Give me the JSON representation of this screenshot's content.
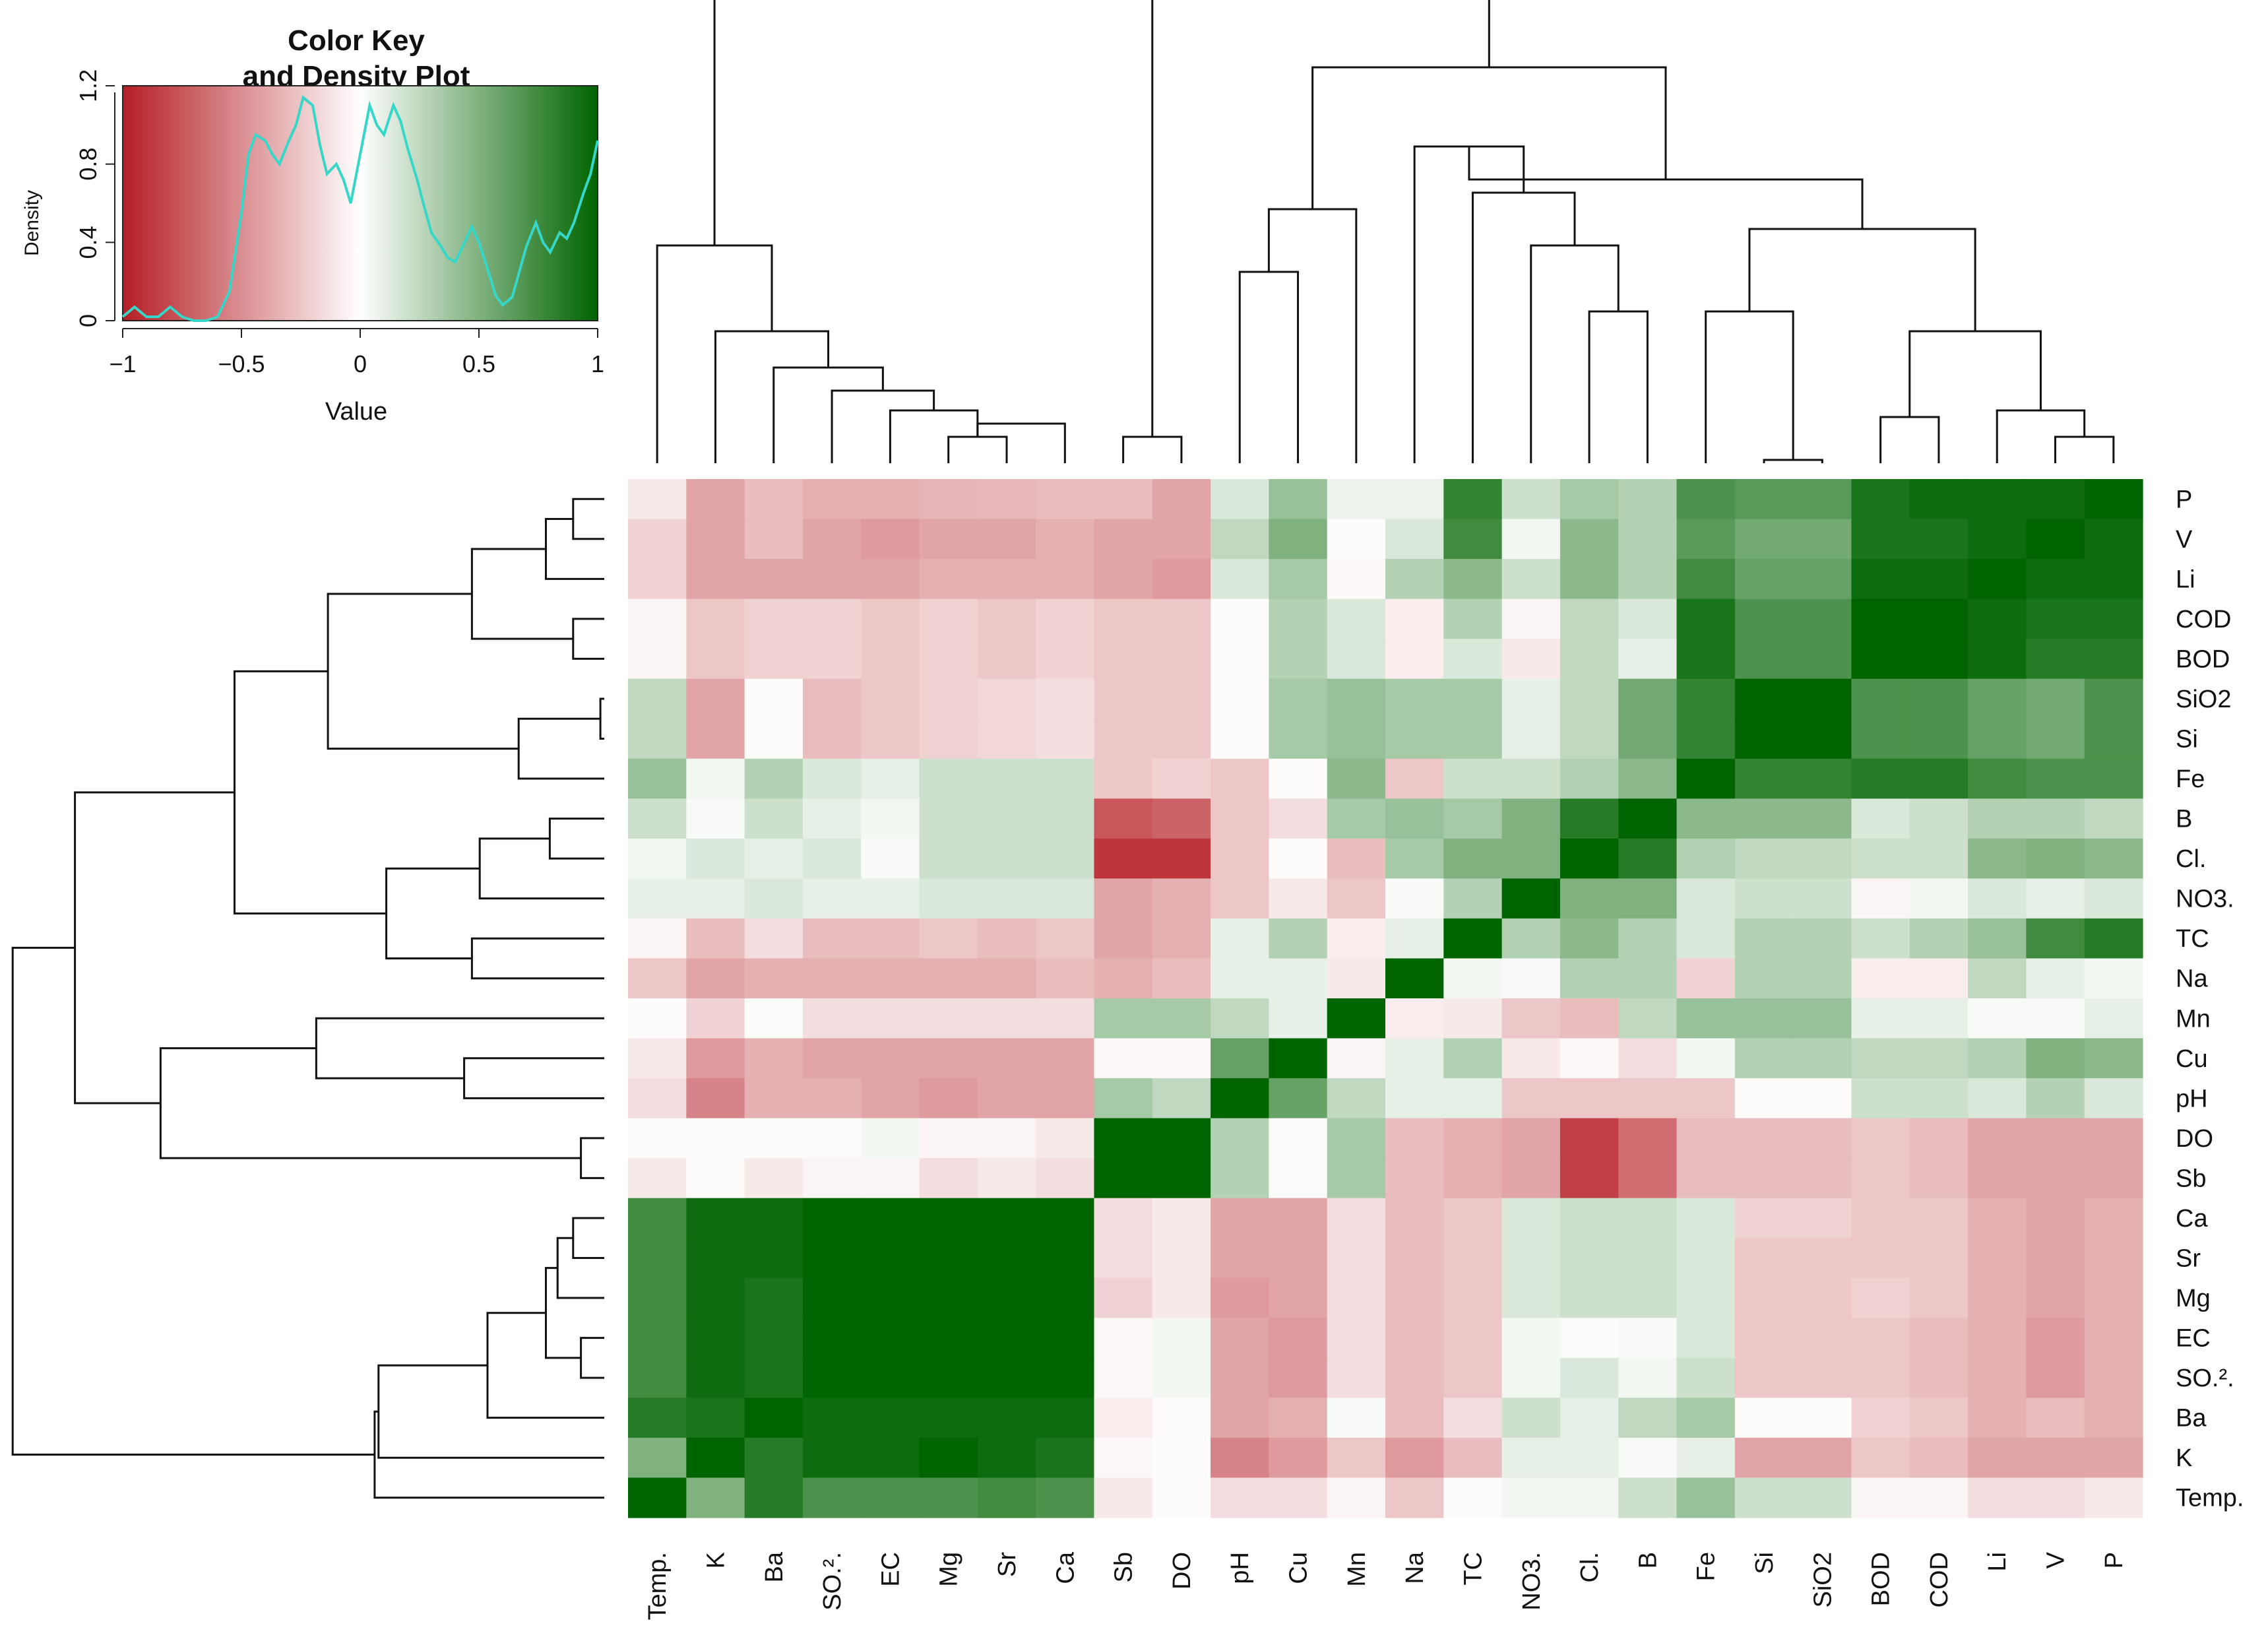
{
  "chart_data": {
    "type": "heatmap",
    "title": "",
    "row_labels": [
      "P",
      "V",
      "Li",
      "COD",
      "BOD",
      "SiO2",
      "Si",
      "Fe",
      "B",
      "Cl.",
      "NO3.",
      "TC",
      "Na",
      "Mn",
      "Cu",
      "pH",
      "DO",
      "Sb",
      "Ca",
      "Sr",
      "Mg",
      "EC",
      "SO.².",
      "Ba",
      "K",
      "Temp."
    ],
    "col_labels": [
      "Temp.",
      "K",
      "Ba",
      "SO.².",
      "EC",
      "Mg",
      "Sr",
      "Ca",
      "Sb",
      "DO",
      "pH",
      "Cu",
      "Mn",
      "Na",
      "TC",
      "NO3.",
      "Cl.",
      "B",
      "Fe",
      "Si",
      "SiO2",
      "BOD",
      "COD",
      "Li",
      "V",
      "P"
    ],
    "values": [
      [
        -0.1,
        -0.4,
        -0.3,
        -0.35,
        -0.35,
        -0.33,
        -0.32,
        -0.3,
        -0.3,
        -0.4,
        0.15,
        0.4,
        0.08,
        0.08,
        0.8,
        0.2,
        0.35,
        0.3,
        0.7,
        0.65,
        0.65,
        0.9,
        0.95,
        0.95,
        0.95,
        1.0
      ],
      [
        -0.2,
        -0.4,
        -0.3,
        -0.4,
        -0.45,
        -0.4,
        -0.4,
        -0.35,
        -0.4,
        -0.4,
        0.25,
        0.5,
        -0.02,
        0.15,
        0.75,
        0.05,
        0.45,
        0.3,
        0.65,
        0.55,
        0.55,
        0.9,
        0.9,
        0.95,
        1.0,
        0.95
      ],
      [
        -0.2,
        -0.4,
        -0.4,
        -0.4,
        -0.4,
        -0.35,
        -0.35,
        -0.35,
        -0.4,
        -0.45,
        0.15,
        0.35,
        -0.03,
        0.3,
        0.45,
        0.2,
        0.45,
        0.3,
        0.75,
        0.6,
        0.6,
        0.95,
        0.95,
        1.0,
        0.95,
        0.95
      ],
      [
        -0.05,
        -0.25,
        -0.2,
        -0.2,
        -0.25,
        -0.2,
        -0.25,
        -0.2,
        -0.25,
        -0.25,
        -0.02,
        0.3,
        0.15,
        -0.08,
        0.3,
        -0.05,
        0.25,
        0.15,
        0.9,
        0.7,
        0.7,
        1.0,
        1.0,
        0.95,
        0.9,
        0.9
      ],
      [
        -0.05,
        -0.25,
        -0.2,
        -0.2,
        -0.25,
        -0.2,
        -0.25,
        -0.2,
        -0.25,
        -0.25,
        -0.02,
        0.3,
        0.15,
        -0.08,
        0.15,
        -0.1,
        0.25,
        0.1,
        0.9,
        0.7,
        0.7,
        1.0,
        1.0,
        0.95,
        0.85,
        0.85
      ],
      [
        0.25,
        -0.4,
        -0.02,
        -0.3,
        -0.25,
        -0.2,
        -0.18,
        -0.15,
        -0.25,
        -0.25,
        -0.02,
        0.35,
        0.4,
        0.35,
        0.35,
        0.1,
        0.25,
        0.55,
        0.8,
        1.0,
        1.0,
        0.7,
        0.7,
        0.6,
        0.55,
        0.7
      ],
      [
        0.25,
        -0.4,
        -0.02,
        -0.3,
        -0.25,
        -0.2,
        -0.18,
        -0.15,
        -0.25,
        -0.25,
        -0.02,
        0.35,
        0.4,
        0.35,
        0.35,
        0.1,
        0.25,
        0.55,
        0.8,
        1.0,
        1.0,
        0.7,
        0.7,
        0.6,
        0.55,
        0.7
      ],
      [
        0.4,
        0.05,
        0.3,
        0.15,
        0.1,
        0.2,
        0.2,
        0.2,
        -0.25,
        -0.2,
        -0.25,
        -0.02,
        0.45,
        -0.25,
        0.2,
        0.2,
        0.3,
        0.45,
        1.0,
        0.8,
        0.8,
        0.85,
        0.85,
        0.75,
        0.7,
        0.7
      ],
      [
        0.2,
        0.03,
        0.2,
        0.1,
        0.05,
        0.2,
        0.2,
        0.2,
        -0.75,
        -0.7,
        -0.25,
        -0.15,
        0.35,
        0.4,
        0.35,
        0.5,
        0.85,
        1.0,
        0.45,
        0.45,
        0.45,
        0.15,
        0.2,
        0.3,
        0.3,
        0.25
      ],
      [
        0.05,
        0.15,
        0.1,
        0.15,
        0.03,
        0.2,
        0.2,
        0.2,
        -0.9,
        -0.9,
        -0.25,
        -0.02,
        -0.3,
        0.35,
        0.5,
        0.5,
        1.0,
        0.85,
        0.3,
        0.25,
        0.25,
        0.2,
        0.2,
        0.45,
        0.5,
        0.45
      ],
      [
        0.1,
        0.1,
        0.15,
        0.1,
        0.1,
        0.15,
        0.15,
        0.15,
        -0.4,
        -0.35,
        -0.25,
        -0.1,
        -0.25,
        0.03,
        0.3,
        1.0,
        0.5,
        0.5,
        0.15,
        0.2,
        0.2,
        -0.05,
        0.05,
        0.15,
        0.1,
        0.15
      ],
      [
        -0.05,
        -0.3,
        -0.15,
        -0.3,
        -0.3,
        -0.25,
        -0.3,
        -0.25,
        -0.4,
        -0.35,
        0.1,
        0.3,
        -0.08,
        0.1,
        1.0,
        0.3,
        0.45,
        0.3,
        0.15,
        0.3,
        0.3,
        0.2,
        0.3,
        0.4,
        0.75,
        0.85
      ],
      [
        -0.25,
        -0.4,
        -0.35,
        -0.35,
        -0.35,
        -0.35,
        -0.35,
        -0.3,
        -0.35,
        -0.3,
        0.1,
        0.1,
        -0.1,
        1.0,
        0.05,
        0.03,
        0.3,
        0.3,
        -0.2,
        0.3,
        0.3,
        -0.08,
        -0.08,
        0.25,
        0.1,
        0.05
      ],
      [
        -0.02,
        -0.2,
        0.02,
        -0.15,
        -0.15,
        -0.15,
        -0.15,
        -0.15,
        0.35,
        0.35,
        0.25,
        0.1,
        1.0,
        -0.08,
        -0.1,
        -0.25,
        -0.3,
        0.25,
        0.4,
        0.4,
        0.4,
        0.1,
        0.1,
        0.03,
        0.03,
        0.1
      ],
      [
        -0.1,
        -0.45,
        -0.35,
        -0.4,
        -0.4,
        -0.4,
        -0.4,
        -0.4,
        -0.03,
        -0.03,
        0.6,
        1.0,
        -0.05,
        0.1,
        0.3,
        -0.1,
        -0.03,
        -0.15,
        0.05,
        0.3,
        0.3,
        0.25,
        0.25,
        0.3,
        0.5,
        0.45
      ],
      [
        -0.15,
        -0.55,
        -0.35,
        -0.35,
        -0.4,
        -0.45,
        -0.4,
        -0.4,
        0.35,
        0.25,
        1.0,
        0.6,
        0.25,
        0.1,
        0.1,
        -0.25,
        -0.25,
        -0.25,
        -0.25,
        -0.02,
        -0.02,
        0.2,
        0.2,
        0.15,
        0.3,
        0.15
      ],
      [
        -0.02,
        -0.02,
        -0.02,
        -0.02,
        0.05,
        -0.05,
        -0.05,
        -0.1,
        1.0,
        1.0,
        0.3,
        0.02,
        0.35,
        -0.3,
        -0.35,
        -0.4,
        -0.85,
        -0.65,
        -0.3,
        -0.3,
        -0.3,
        -0.25,
        -0.3,
        -0.4,
        -0.4,
        -0.4
      ],
      [
        -0.1,
        -0.02,
        -0.1,
        -0.05,
        -0.05,
        -0.15,
        -0.1,
        -0.15,
        1.0,
        1.0,
        0.3,
        0.02,
        0.35,
        -0.3,
        -0.35,
        -0.4,
        -0.85,
        -0.65,
        -0.3,
        -0.3,
        -0.3,
        -0.25,
        -0.3,
        -0.4,
        -0.4,
        -0.4
      ],
      [
        0.75,
        0.95,
        0.95,
        1.0,
        1.0,
        1.0,
        1.0,
        1.0,
        -0.15,
        -0.1,
        -0.4,
        -0.4,
        -0.15,
        -0.3,
        -0.25,
        0.15,
        0.2,
        0.2,
        0.15,
        -0.2,
        -0.2,
        -0.25,
        -0.25,
        -0.35,
        -0.4,
        -0.35
      ],
      [
        0.75,
        0.95,
        0.95,
        1.0,
        1.0,
        1.0,
        1.0,
        1.0,
        -0.15,
        -0.1,
        -0.4,
        -0.4,
        -0.15,
        -0.3,
        -0.25,
        0.15,
        0.2,
        0.2,
        0.15,
        -0.25,
        -0.25,
        -0.25,
        -0.25,
        -0.35,
        -0.4,
        -0.35
      ],
      [
        0.75,
        0.95,
        0.9,
        1.0,
        1.0,
        1.0,
        1.0,
        1.0,
        -0.2,
        -0.1,
        -0.45,
        -0.4,
        -0.15,
        -0.3,
        -0.25,
        0.15,
        0.2,
        0.2,
        0.15,
        -0.25,
        -0.25,
        -0.2,
        -0.25,
        -0.35,
        -0.4,
        -0.35
      ],
      [
        0.75,
        0.95,
        0.9,
        1.0,
        1.0,
        1.0,
        1.0,
        1.0,
        -0.03,
        0.05,
        -0.4,
        -0.45,
        -0.15,
        -0.3,
        -0.25,
        0.05,
        0.02,
        0.03,
        0.15,
        -0.25,
        -0.25,
        -0.25,
        -0.3,
        -0.35,
        -0.45,
        -0.35
      ],
      [
        0.75,
        0.95,
        0.9,
        1.0,
        1.0,
        1.0,
        1.0,
        1.0,
        -0.03,
        0.05,
        -0.4,
        -0.45,
        -0.15,
        -0.3,
        -0.25,
        0.05,
        0.15,
        0.05,
        0.2,
        -0.25,
        -0.25,
        -0.25,
        -0.3,
        -0.35,
        -0.45,
        -0.35
      ],
      [
        0.85,
        0.9,
        1.0,
        0.95,
        0.95,
        0.95,
        0.95,
        0.95,
        -0.08,
        -0.02,
        -0.4,
        -0.35,
        0.03,
        -0.3,
        -0.15,
        0.2,
        0.1,
        0.25,
        0.35,
        -0.02,
        -0.02,
        -0.2,
        -0.25,
        -0.35,
        -0.3,
        -0.35
      ],
      [
        0.5,
        1.0,
        0.85,
        0.95,
        0.95,
        1.0,
        0.95,
        0.9,
        -0.03,
        -0.02,
        -0.55,
        -0.45,
        -0.25,
        -0.45,
        -0.3,
        0.1,
        0.1,
        0.03,
        0.1,
        -0.4,
        -0.4,
        -0.25,
        -0.3,
        -0.4,
        -0.4,
        -0.4
      ],
      [
        1.0,
        0.5,
        0.85,
        0.7,
        0.7,
        0.7,
        0.75,
        0.7,
        -0.1,
        -0.02,
        -0.15,
        -0.15,
        -0.05,
        -0.25,
        0.02,
        0.05,
        0.05,
        0.2,
        0.4,
        0.2,
        0.2,
        -0.05,
        -0.05,
        -0.15,
        -0.15,
        -0.1
      ]
    ],
    "color_key": {
      "title": "Color Key\nand Density Plot",
      "xlabel": "Value",
      "ylabel": "Density",
      "xlim": [
        -1,
        1
      ],
      "ylim": [
        0,
        1.2
      ],
      "xticks": [
        "-1",
        "-0.5",
        "0",
        "0.5",
        "1"
      ],
      "yticks": [
        "0",
        "0.4",
        "0.8",
        "1.2"
      ],
      "density_x": [
        -1.0,
        -0.95,
        -0.9,
        -0.85,
        -0.8,
        -0.75,
        -0.7,
        -0.65,
        -0.6,
        -0.55,
        -0.5,
        -0.47,
        -0.44,
        -0.4,
        -0.37,
        -0.34,
        -0.3,
        -0.27,
        -0.24,
        -0.2,
        -0.17,
        -0.14,
        -0.1,
        -0.07,
        -0.04,
        0.0,
        0.04,
        0.07,
        0.1,
        0.14,
        0.17,
        0.2,
        0.24,
        0.27,
        0.3,
        0.34,
        0.37,
        0.4,
        0.44,
        0.47,
        0.5,
        0.54,
        0.57,
        0.6,
        0.64,
        0.67,
        0.7,
        0.74,
        0.77,
        0.8,
        0.84,
        0.87,
        0.9,
        0.94,
        0.97,
        1.0
      ],
      "density_y": [
        0.02,
        0.07,
        0.02,
        0.02,
        0.07,
        0.02,
        0.0,
        0.0,
        0.02,
        0.15,
        0.55,
        0.85,
        0.95,
        0.92,
        0.85,
        0.8,
        0.92,
        1.0,
        1.14,
        1.1,
        0.9,
        0.75,
        0.8,
        0.72,
        0.6,
        0.85,
        1.1,
        1.0,
        0.95,
        1.1,
        1.02,
        0.88,
        0.72,
        0.58,
        0.45,
        0.38,
        0.32,
        0.3,
        0.4,
        0.48,
        0.4,
        0.25,
        0.13,
        0.08,
        0.12,
        0.25,
        0.38,
        0.5,
        0.4,
        0.35,
        0.45,
        0.42,
        0.5,
        0.65,
        0.75,
        0.92
      ]
    },
    "colors": {
      "negative": "#b51e24",
      "neutral": "#ffffff",
      "positive": "#006400",
      "density_line": "#36d6c8",
      "dendrogram": "#111111"
    }
  }
}
